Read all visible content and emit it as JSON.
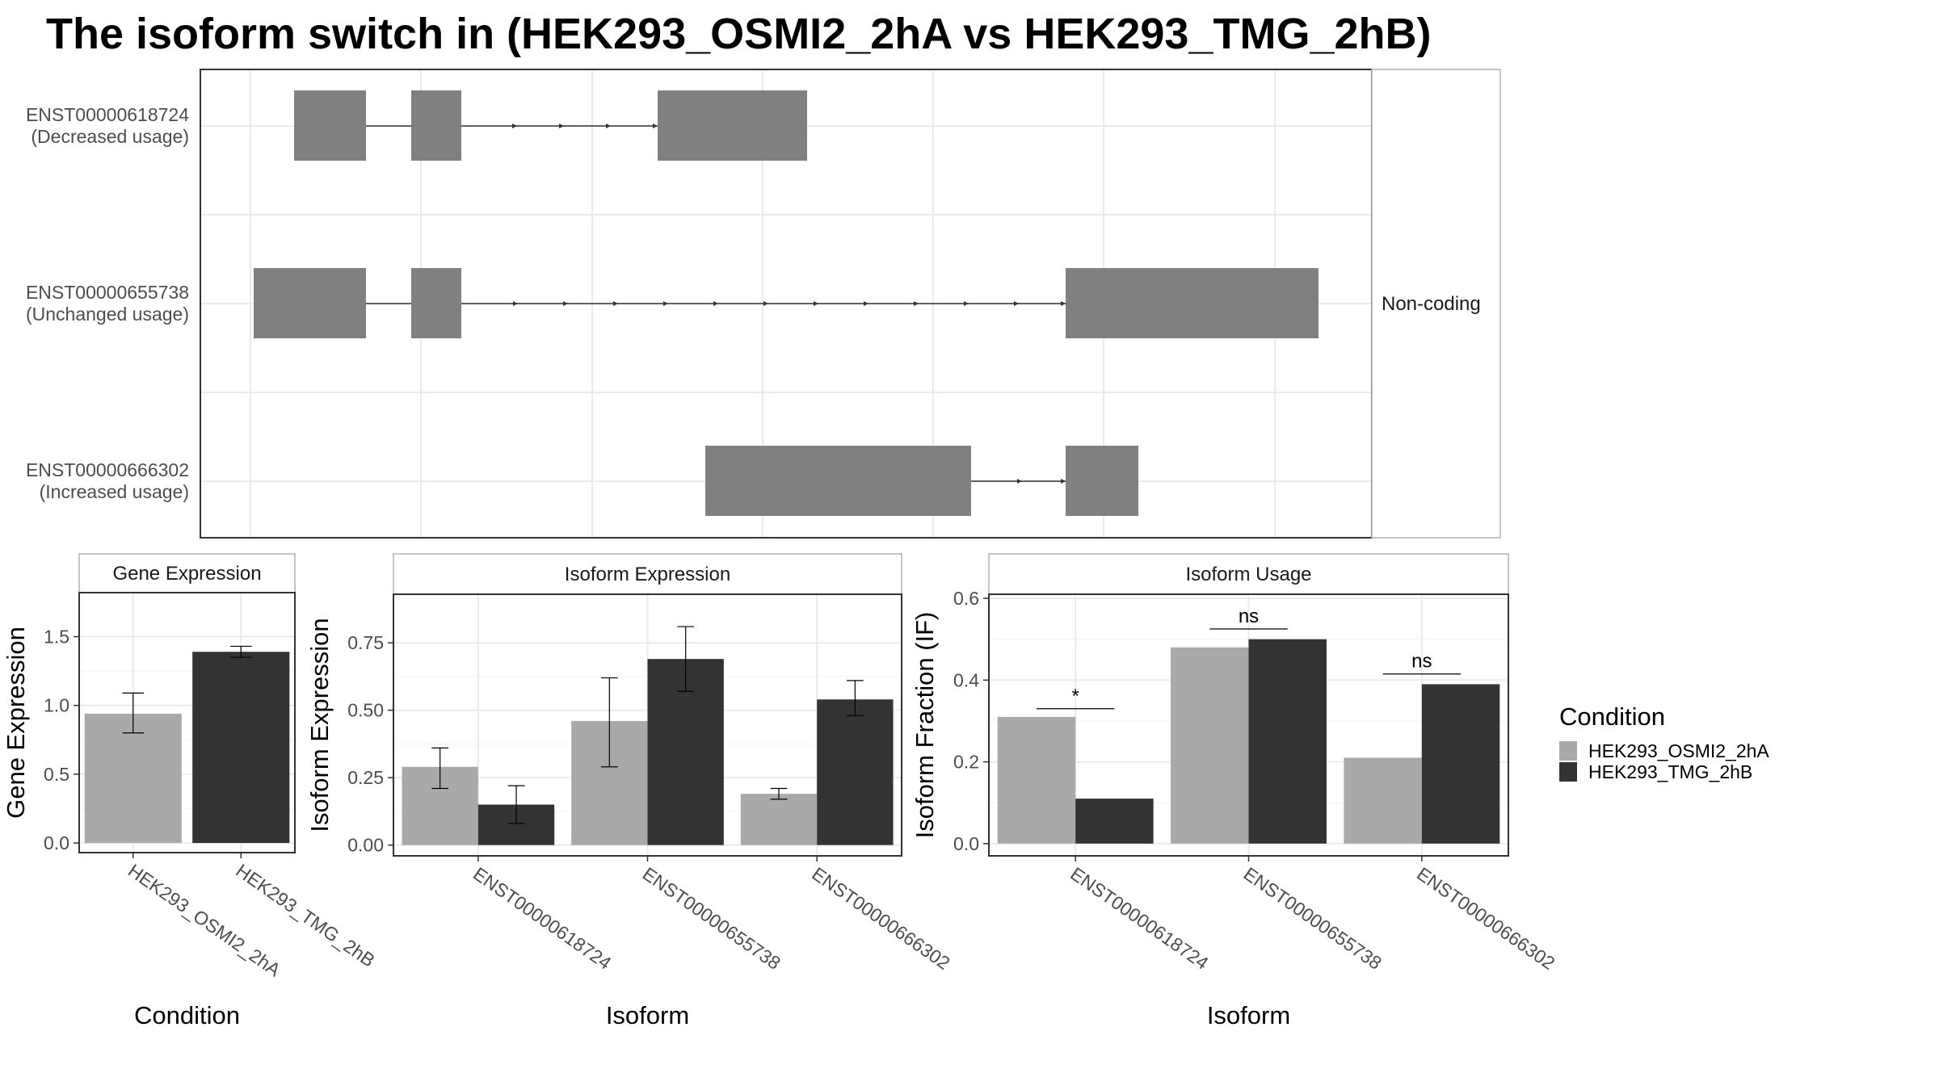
{
  "title": "The isoform switch in  (HEK293_OSMI2_2hA vs HEK293_TMG_2hB)",
  "colors": {
    "condition_a": "#a9a9a9",
    "condition_b": "#333333",
    "exon": "#808080",
    "grid": "#ebebeb",
    "panel_border": "#333333",
    "strip_border": "#b3b3b3"
  },
  "structure_panel": {
    "side_label": "Non-coding",
    "rows": [
      {
        "id": "ENST00000618724",
        "usage": "(Decreased usage)"
      },
      {
        "id": "ENST00000655738",
        "usage": "(Unchanged usage)"
      },
      {
        "id": "ENST00000666302",
        "usage": "(Increased usage)"
      }
    ]
  },
  "legend": {
    "title": "Condition",
    "items": [
      "HEK293_OSMI2_2hA",
      "HEK293_TMG_2hB"
    ]
  },
  "chart_data": [
    {
      "type": "bar",
      "title": "Gene Expression",
      "xlabel": "Condition",
      "ylabel": "Gene Expression",
      "categories": [
        "HEK293_OSMI2_2hA",
        "HEK293_TMG_2hB"
      ],
      "values": [
        0.94,
        1.39
      ],
      "error_low": [
        0.8,
        1.35
      ],
      "error_high": [
        1.09,
        1.43
      ],
      "ylim": [
        -0.07,
        1.82
      ],
      "yticks": [
        0.0,
        0.5,
        1.0,
        1.5
      ],
      "ytick_labels": [
        "0.0",
        "0.5",
        "1.0",
        "1.5"
      ]
    },
    {
      "type": "bar",
      "title": "Isoform Expression",
      "xlabel": "Isoform",
      "ylabel": "Isoform Expression",
      "categories": [
        "ENST00000618724",
        "ENST00000655738",
        "ENST00000666302"
      ],
      "series": [
        {
          "name": "HEK293_OSMI2_2hA",
          "values": [
            0.29,
            0.46,
            0.19
          ],
          "error_low": [
            0.21,
            0.29,
            0.17
          ],
          "error_high": [
            0.36,
            0.62,
            0.21
          ]
        },
        {
          "name": "HEK293_TMG_2hB",
          "values": [
            0.15,
            0.69,
            0.54
          ],
          "error_low": [
            0.08,
            0.57,
            0.48
          ],
          "error_high": [
            0.22,
            0.81,
            0.61
          ]
        }
      ],
      "ylim": [
        -0.04,
        0.93
      ],
      "yticks": [
        0.0,
        0.25,
        0.5,
        0.75
      ],
      "ytick_labels": [
        "0.00",
        "0.25",
        "0.50",
        "0.75"
      ]
    },
    {
      "type": "bar",
      "title": "Isoform Usage",
      "xlabel": "Isoform",
      "ylabel": "Isoform Fraction (IF)",
      "categories": [
        "ENST00000618724",
        "ENST00000655738",
        "ENST00000666302"
      ],
      "series": [
        {
          "name": "HEK293_OSMI2_2hA",
          "values": [
            0.31,
            0.48,
            0.21
          ]
        },
        {
          "name": "HEK293_TMG_2hB",
          "values": [
            0.11,
            0.5,
            0.39
          ]
        }
      ],
      "significance": [
        "*",
        "ns",
        "ns"
      ],
      "sig_levels": [
        0.33,
        0.525,
        0.415
      ],
      "ylim": [
        -0.03,
        0.61
      ],
      "yticks": [
        0.0,
        0.2,
        0.4,
        0.6
      ],
      "ytick_labels": [
        "0.0",
        "0.2",
        "0.4",
        "0.6"
      ]
    }
  ]
}
